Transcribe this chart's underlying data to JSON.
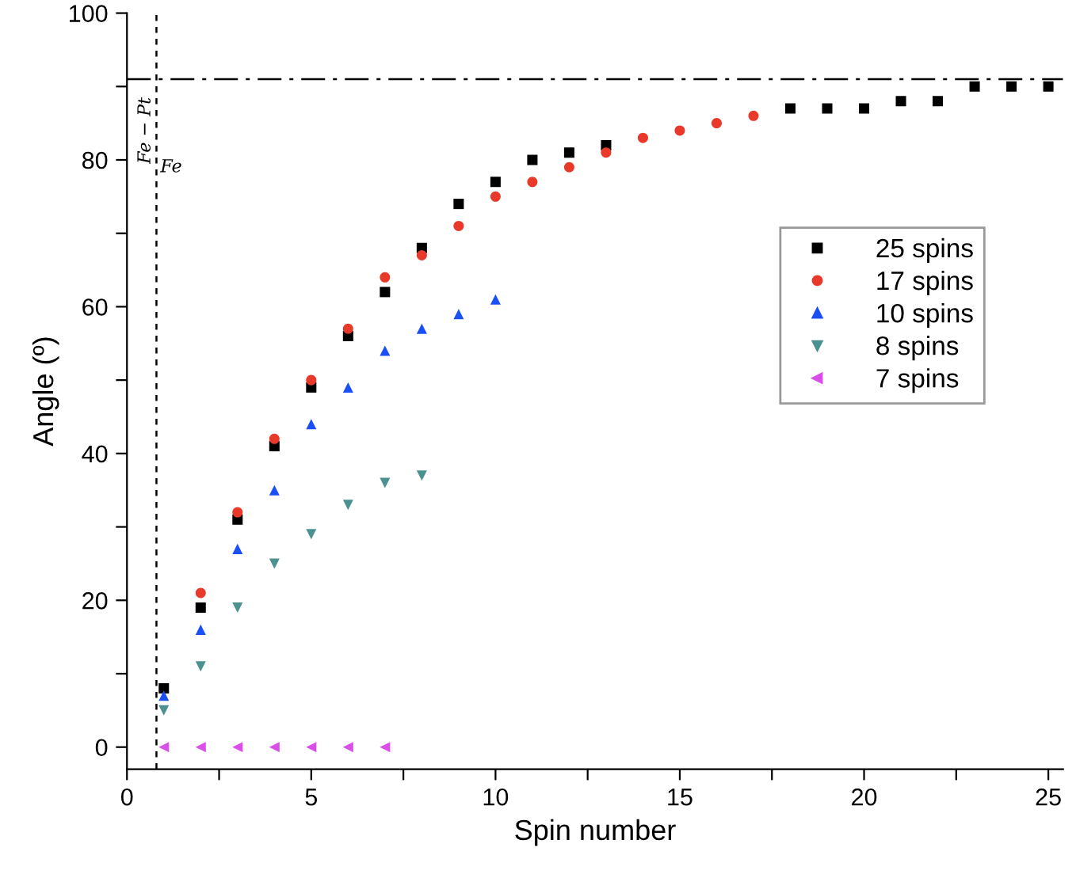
{
  "chart_data": {
    "type": "scatter",
    "xlabel": "Spin number",
    "ylabel": "Angle (º)",
    "xlim": [
      0,
      25.4
    ],
    "ylim": [
      -3,
      100
    ],
    "xticks": [
      0,
      {
        "value": 2.5,
        "label": null
      },
      5,
      {
        "value": 7.5,
        "label": null
      },
      10,
      {
        "value": 12.5,
        "label": null
      },
      15,
      {
        "value": 17.5,
        "label": null
      },
      20,
      {
        "value": 22.5,
        "label": null
      },
      25
    ],
    "yticks": [
      0,
      {
        "value": 10,
        "label": null
      },
      20,
      {
        "value": 30,
        "label": null
      },
      40,
      {
        "value": 50,
        "label": null
      },
      60,
      {
        "value": 70,
        "label": null
      },
      80,
      {
        "value": 90,
        "label": null
      },
      100
    ],
    "grid": false,
    "legend": "center right",
    "series": [
      {
        "name": "25 spins",
        "color": "#000000",
        "marker": "square",
        "x": [
          1,
          2,
          3,
          4,
          5,
          6,
          7,
          8,
          9,
          10,
          11,
          12,
          13,
          14,
          15,
          16,
          17,
          18,
          19,
          20,
          21,
          22,
          23,
          24,
          25
        ],
        "values": [
          8,
          19,
          31,
          41,
          49,
          56,
          62,
          68,
          74,
          77,
          80,
          81,
          82,
          null,
          null,
          null,
          null,
          87,
          87,
          87,
          88,
          88,
          90,
          90,
          90
        ]
      },
      {
        "name": "17 spins",
        "color": "#e8392b",
        "marker": "circle",
        "x": [
          2,
          3,
          4,
          5,
          6,
          7,
          8,
          9,
          10,
          11,
          12,
          13,
          14,
          15,
          16,
          17
        ],
        "values": [
          21,
          32,
          42,
          50,
          57,
          64,
          67,
          71,
          75,
          77,
          79,
          81,
          83,
          84,
          85,
          86
        ]
      },
      {
        "name": "10 spins",
        "color": "#1a4ff5",
        "marker": "triangle",
        "x": [
          1,
          2,
          3,
          4,
          5,
          6,
          7,
          8,
          9,
          10
        ],
        "values": [
          7,
          16,
          27,
          35,
          44,
          49,
          54,
          57,
          59,
          61
        ]
      },
      {
        "name": "8 spins",
        "color": "#4a9190",
        "marker": "triangle_down",
        "x": [
          1,
          2,
          3,
          4,
          5,
          6,
          7,
          8
        ],
        "values": [
          5,
          11,
          19,
          25,
          29,
          33,
          36,
          37
        ]
      },
      {
        "name": "7 spins",
        "color": "#d94fe8",
        "marker": "triangle_left",
        "x": [
          1,
          2,
          3,
          4,
          5,
          6,
          7
        ],
        "values": [
          0,
          0,
          0,
          0,
          0,
          0,
          0
        ]
      }
    ],
    "ref_lines": [
      {
        "axis": "y",
        "value": 91,
        "line_style": "dashdot",
        "color": "#000000"
      },
      {
        "axis": "x",
        "value": 0.8,
        "line_style": "dashed",
        "color": "#000000"
      }
    ],
    "annotations": [
      "Fe − Pt",
      "Fe"
    ]
  }
}
